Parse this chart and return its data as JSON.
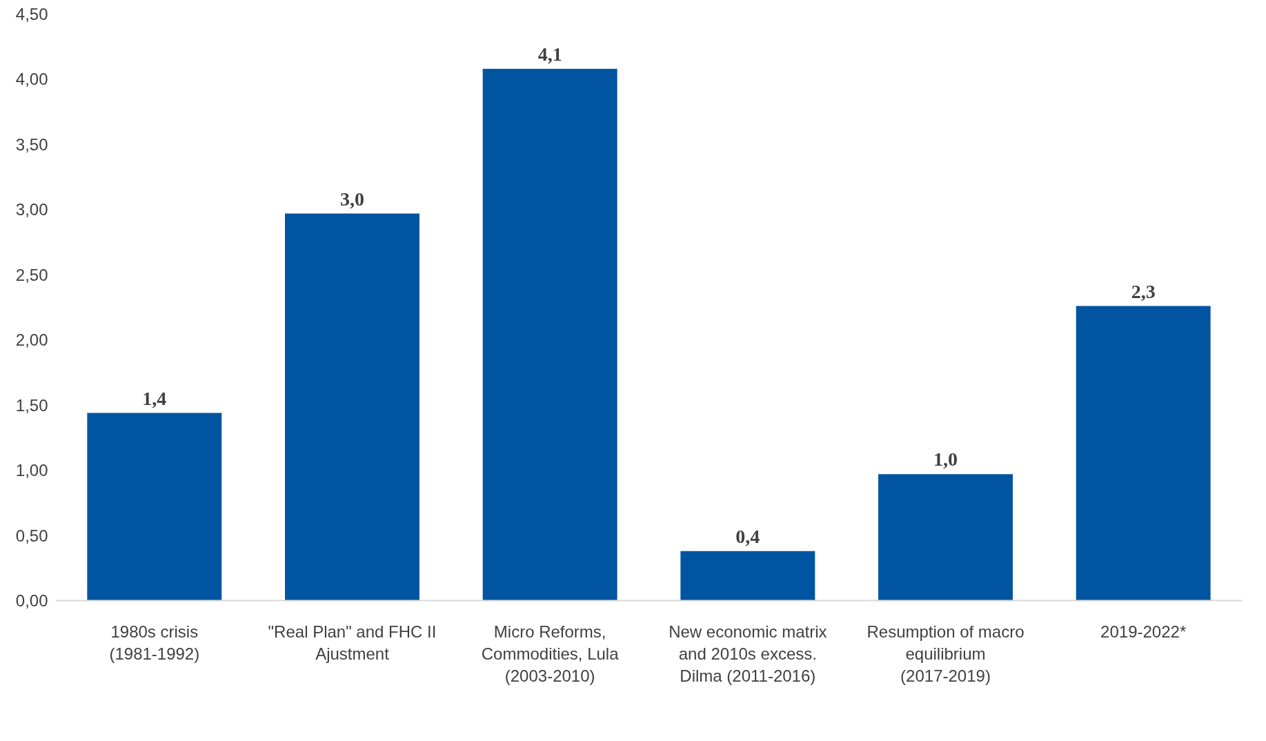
{
  "chart_data": {
    "type": "bar",
    "categories": [
      "1980s crisis (1981-1992)",
      "\"Real Plan\" and FHC II Ajustment",
      "Micro Reforms, Commodities, Lula (2003-2010)",
      "New economic matrix and 2010s excess. Dilma (2011-2016)",
      "Resumption of macro equilibrium (2017-2019)",
      "2019-2022*"
    ],
    "values": [
      1.44,
      2.97,
      4.08,
      0.38,
      0.97,
      2.26
    ],
    "value_labels": [
      "1,4",
      "3,0",
      "4,1",
      "0,4",
      "1,0",
      "2,3"
    ],
    "color": "#0054a0",
    "ylim": [
      0,
      4.5
    ],
    "yticks": [
      {
        "value": 0,
        "label": "0,00"
      },
      {
        "value": 0.5,
        "label": "0,50"
      },
      {
        "value": 1,
        "label": "1,00"
      },
      {
        "value": 1.5,
        "label": "1,50"
      },
      {
        "value": 2,
        "label": "2,00"
      },
      {
        "value": 2.5,
        "label": "2,50"
      },
      {
        "value": 3,
        "label": "3,00"
      },
      {
        "value": 3.5,
        "label": "3,50"
      },
      {
        "value": 4,
        "label": "4,00"
      },
      {
        "value": 4.5,
        "label": "4,50"
      }
    ],
    "grid": false
  }
}
